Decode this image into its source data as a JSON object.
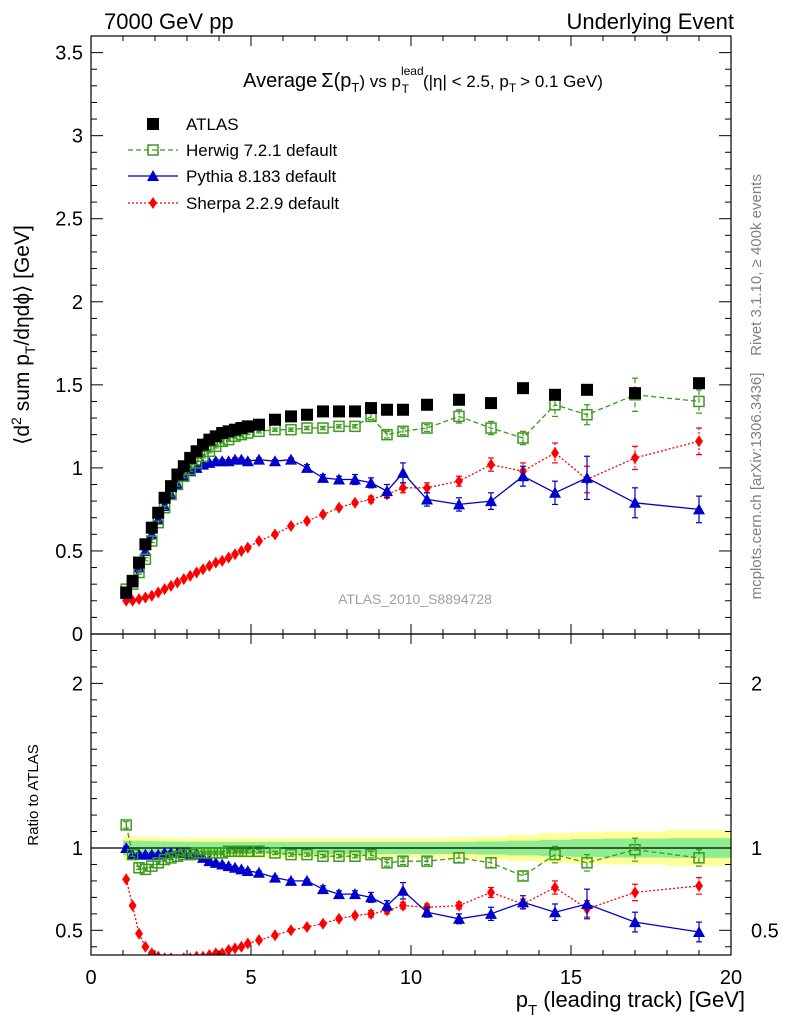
{
  "header": {
    "left": "7000 GeV pp",
    "right": "Underlying Event"
  },
  "side": {
    "rivet": "Rivet 3.1.10, ≥ 400k events",
    "mcplots": "mcplots.cern.ch [arXiv:1306.3436]"
  },
  "colors": {
    "atlas": "#000000",
    "herwig": "#3a9a1c",
    "pythia": "#0000cc",
    "sherpa": "#ff0000",
    "band_inner": "#90ee90",
    "band_outer": "#ffff99",
    "analysis": "#a0a0a0"
  },
  "chart_data": [
    {
      "panel": "main",
      "type": "line",
      "title": "Average Σ(pT) vs pT lead (|η| < 2.5, pT > 0.1 GeV)",
      "title_parts": {
        "average": "Average",
        "sigma": "Σ(p",
        "t1": "T",
        "close": ") vs p",
        "lead": "lead",
        "t2": "T",
        "eta": "(|η| < 2.5, p",
        "t3": "T",
        "cut": "> 0.1 GeV)"
      },
      "ylabel": "⟨d² sum pT/dηdϕ⟩ [GeV]",
      "ylabel_parts": {
        "a": "⟨d",
        "sq": "2",
        "b": " sum p",
        "t": "T",
        "c": "/dηdϕ⟩ [GeV]"
      },
      "analysis": "ATLAS_2010_S8894728",
      "xlim": [
        0,
        20
      ],
      "ylim": [
        0,
        3.6
      ],
      "yticks": [
        0,
        0.5,
        1,
        1.5,
        2,
        2.5,
        3,
        3.5
      ],
      "ytick_labels": [
        "0",
        "0.5",
        "1",
        "1.5",
        "2",
        "2.5",
        "3",
        "3.5"
      ],
      "legend_position": "top-left",
      "series": [
        {
          "name": "ATLAS",
          "key": "atlas",
          "marker": "square-filled",
          "line": "none",
          "x": [
            1.1,
            1.3,
            1.5,
            1.7,
            1.9,
            2.1,
            2.3,
            2.5,
            2.7,
            2.9,
            3.1,
            3.3,
            3.5,
            3.7,
            3.9,
            4.1,
            4.3,
            4.5,
            4.7,
            4.9,
            5.25,
            5.75,
            6.25,
            6.75,
            7.25,
            7.75,
            8.25,
            8.75,
            9.25,
            9.75,
            10.5,
            11.5,
            12.5,
            13.5,
            14.5,
            15.5,
            17.0,
            19.0
          ],
          "y": [
            0.25,
            0.32,
            0.43,
            0.54,
            0.64,
            0.73,
            0.82,
            0.89,
            0.96,
            1.01,
            1.06,
            1.1,
            1.14,
            1.17,
            1.19,
            1.21,
            1.22,
            1.23,
            1.24,
            1.25,
            1.26,
            1.29,
            1.31,
            1.32,
            1.34,
            1.34,
            1.34,
            1.36,
            1.35,
            1.35,
            1.38,
            1.41,
            1.39,
            1.48,
            1.44,
            1.47,
            1.45,
            1.51
          ],
          "yerr": [
            0.01,
            0.01,
            0.01,
            0.01,
            0.01,
            0.01,
            0.01,
            0.01,
            0.01,
            0.01,
            0.01,
            0.01,
            0.01,
            0.01,
            0.01,
            0.01,
            0.01,
            0.01,
            0.01,
            0.01,
            0.01,
            0.01,
            0.01,
            0.01,
            0.01,
            0.01,
            0.01,
            0.01,
            0.01,
            0.01,
            0.01,
            0.01,
            0.01,
            0.01,
            0.02,
            0.02,
            0.02,
            0.03
          ]
        },
        {
          "name": "Herwig 7.2.1 default",
          "key": "herwig",
          "marker": "square-open",
          "line": "dashed",
          "x": [
            1.1,
            1.3,
            1.5,
            1.7,
            1.9,
            2.1,
            2.3,
            2.5,
            2.7,
            2.9,
            3.1,
            3.3,
            3.5,
            3.7,
            3.9,
            4.1,
            4.3,
            4.5,
            4.7,
            4.9,
            5.25,
            5.75,
            6.25,
            6.75,
            7.25,
            7.75,
            8.25,
            8.75,
            9.25,
            9.75,
            10.5,
            11.5,
            12.5,
            13.5,
            14.5,
            15.5,
            17.0,
            19.0
          ],
          "y": [
            0.27,
            0.3,
            0.37,
            0.45,
            0.56,
            0.67,
            0.76,
            0.84,
            0.9,
            0.95,
            0.99,
            1.03,
            1.07,
            1.1,
            1.13,
            1.16,
            1.17,
            1.19,
            1.2,
            1.21,
            1.22,
            1.23,
            1.23,
            1.24,
            1.24,
            1.25,
            1.25,
            1.31,
            1.2,
            1.22,
            1.24,
            1.31,
            1.24,
            1.18,
            1.38,
            1.32,
            1.44,
            1.4
          ],
          "yerr": [
            0.01,
            0.01,
            0.01,
            0.01,
            0.01,
            0.01,
            0.01,
            0.01,
            0.01,
            0.01,
            0.01,
            0.01,
            0.01,
            0.01,
            0.01,
            0.01,
            0.01,
            0.01,
            0.01,
            0.01,
            0.01,
            0.01,
            0.01,
            0.01,
            0.01,
            0.01,
            0.01,
            0.02,
            0.02,
            0.02,
            0.02,
            0.04,
            0.04,
            0.04,
            0.07,
            0.06,
            0.1,
            0.07
          ]
        },
        {
          "name": "Pythia 8.183 default",
          "key": "pythia",
          "marker": "triangle-filled",
          "line": "solid",
          "x": [
            1.1,
            1.3,
            1.5,
            1.7,
            1.9,
            2.1,
            2.3,
            2.5,
            2.7,
            2.9,
            3.1,
            3.3,
            3.5,
            3.7,
            3.9,
            4.1,
            4.3,
            4.5,
            4.7,
            4.9,
            5.25,
            5.75,
            6.25,
            6.75,
            7.25,
            7.75,
            8.25,
            8.75,
            9.25,
            9.75,
            10.5,
            11.5,
            12.5,
            13.5,
            14.5,
            15.5,
            17.0,
            19.0
          ],
          "y": [
            0.24,
            0.31,
            0.4,
            0.5,
            0.6,
            0.69,
            0.77,
            0.84,
            0.9,
            0.95,
            0.98,
            1.0,
            1.02,
            1.03,
            1.04,
            1.04,
            1.04,
            1.05,
            1.05,
            1.04,
            1.05,
            1.04,
            1.05,
            1.0,
            0.94,
            0.93,
            0.93,
            0.91,
            0.86,
            0.97,
            0.81,
            0.78,
            0.8,
            0.95,
            0.85,
            0.94,
            0.79,
            0.75
          ],
          "yerr": [
            0.01,
            0.01,
            0.01,
            0.01,
            0.01,
            0.01,
            0.01,
            0.01,
            0.01,
            0.01,
            0.01,
            0.01,
            0.01,
            0.01,
            0.01,
            0.01,
            0.01,
            0.01,
            0.01,
            0.01,
            0.01,
            0.01,
            0.01,
            0.02,
            0.02,
            0.02,
            0.03,
            0.03,
            0.04,
            0.06,
            0.04,
            0.04,
            0.05,
            0.06,
            0.07,
            0.13,
            0.09,
            0.08
          ]
        },
        {
          "name": "Sherpa 2.2.9 default",
          "key": "sherpa",
          "marker": "diamond-filled",
          "line": "dotted",
          "x": [
            1.1,
            1.3,
            1.5,
            1.7,
            1.9,
            2.1,
            2.3,
            2.5,
            2.7,
            2.9,
            3.1,
            3.3,
            3.5,
            3.7,
            3.9,
            4.1,
            4.3,
            4.5,
            4.7,
            4.9,
            5.25,
            5.75,
            6.25,
            6.75,
            7.25,
            7.75,
            8.25,
            8.75,
            9.25,
            9.75,
            10.5,
            11.5,
            12.5,
            13.5,
            14.5,
            15.5,
            17.0,
            19.0
          ],
          "y": [
            0.2,
            0.2,
            0.21,
            0.22,
            0.23,
            0.25,
            0.27,
            0.29,
            0.31,
            0.33,
            0.35,
            0.37,
            0.39,
            0.41,
            0.43,
            0.44,
            0.46,
            0.48,
            0.5,
            0.52,
            0.56,
            0.6,
            0.65,
            0.68,
            0.72,
            0.76,
            0.79,
            0.81,
            0.84,
            0.88,
            0.88,
            0.92,
            1.02,
            0.98,
            1.09,
            0.93,
            1.06,
            1.16
          ],
          "yerr": [
            0.005,
            0.005,
            0.005,
            0.005,
            0.005,
            0.005,
            0.005,
            0.005,
            0.005,
            0.005,
            0.005,
            0.005,
            0.005,
            0.005,
            0.005,
            0.005,
            0.005,
            0.005,
            0.005,
            0.005,
            0.01,
            0.01,
            0.01,
            0.01,
            0.01,
            0.01,
            0.01,
            0.02,
            0.02,
            0.03,
            0.03,
            0.03,
            0.04,
            0.05,
            0.06,
            0.08,
            0.07,
            0.08
          ]
        }
      ]
    },
    {
      "panel": "ratio",
      "type": "line",
      "ylabel": "Ratio to ATLAS",
      "xlabel": "pT (leading track) [GeV]",
      "xlabel_parts": {
        "p": "p",
        "t": "T",
        "rest": " (leading track) [GeV]"
      },
      "xlim": [
        0,
        20
      ],
      "ylim": [
        0.35,
        2.3
      ],
      "xticks": [
        0,
        5,
        10,
        15,
        20
      ],
      "xtick_labels": [
        "0",
        "5",
        "10",
        "15",
        "20"
      ],
      "yticks": [
        0.5,
        1,
        2
      ],
      "ytick_labels": [
        "0.5",
        "1",
        "2"
      ],
      "band_edges": [
        1.0,
        1.2,
        1.4,
        1.6,
        1.8,
        2.0,
        2.2,
        2.4,
        2.6,
        2.8,
        3.0,
        3.2,
        3.4,
        3.6,
        3.8,
        4.0,
        4.2,
        4.4,
        4.6,
        4.8,
        5.0,
        5.5,
        6.0,
        6.5,
        7.0,
        7.5,
        8.0,
        8.5,
        9.0,
        9.5,
        10.0,
        11.0,
        12.0,
        13.0,
        14.0,
        15.0,
        16.0,
        18.0,
        20.0
      ],
      "band_inner": [
        0.045,
        0.045,
        0.045,
        0.043,
        0.042,
        0.041,
        0.04,
        0.039,
        0.039,
        0.038,
        0.038,
        0.038,
        0.037,
        0.037,
        0.037,
        0.037,
        0.037,
        0.037,
        0.037,
        0.037,
        0.037,
        0.037,
        0.037,
        0.037,
        0.037,
        0.037,
        0.037,
        0.037,
        0.037,
        0.037,
        0.037,
        0.037,
        0.04,
        0.045,
        0.05,
        0.055,
        0.058,
        0.06
      ],
      "band_outer": [
        0.075,
        0.072,
        0.07,
        0.068,
        0.066,
        0.064,
        0.063,
        0.062,
        0.061,
        0.06,
        0.06,
        0.06,
        0.06,
        0.06,
        0.06,
        0.06,
        0.06,
        0.06,
        0.06,
        0.06,
        0.06,
        0.06,
        0.06,
        0.06,
        0.06,
        0.06,
        0.06,
        0.06,
        0.06,
        0.06,
        0.06,
        0.065,
        0.07,
        0.08,
        0.09,
        0.095,
        0.1,
        0.11
      ],
      "series": [
        {
          "name": "Herwig 7.2.1 default",
          "key": "herwig",
          "marker": "square-open",
          "line": "dashed",
          "x": [
            1.1,
            1.3,
            1.5,
            1.7,
            1.9,
            2.1,
            2.3,
            2.5,
            2.7,
            2.9,
            3.1,
            3.3,
            3.5,
            3.7,
            3.9,
            4.1,
            4.3,
            4.5,
            4.7,
            4.9,
            5.25,
            5.75,
            6.25,
            6.75,
            7.25,
            7.75,
            8.25,
            8.75,
            9.25,
            9.75,
            10.5,
            11.5,
            12.5,
            13.5,
            14.5,
            15.5,
            17.0,
            19.0
          ],
          "y": [
            1.14,
            0.96,
            0.88,
            0.87,
            0.89,
            0.91,
            0.93,
            0.94,
            0.95,
            0.96,
            0.96,
            0.97,
            0.97,
            0.97,
            0.97,
            0.97,
            0.98,
            0.98,
            0.98,
            0.98,
            0.98,
            0.97,
            0.96,
            0.96,
            0.95,
            0.95,
            0.95,
            0.96,
            0.91,
            0.92,
            0.92,
            0.94,
            0.91,
            0.83,
            0.96,
            0.91,
            0.99,
            0.94
          ],
          "yerr": [
            0.02,
            0.01,
            0.01,
            0.01,
            0.01,
            0.01,
            0.01,
            0.01,
            0.01,
            0.01,
            0.01,
            0.01,
            0.01,
            0.01,
            0.01,
            0.01,
            0.01,
            0.01,
            0.01,
            0.01,
            0.01,
            0.01,
            0.01,
            0.01,
            0.01,
            0.01,
            0.01,
            0.02,
            0.02,
            0.02,
            0.02,
            0.03,
            0.03,
            0.03,
            0.05,
            0.05,
            0.07,
            0.05
          ]
        },
        {
          "name": "Pythia 8.183 default",
          "key": "pythia",
          "marker": "triangle-filled",
          "line": "solid",
          "x": [
            1.1,
            1.3,
            1.5,
            1.7,
            1.9,
            2.1,
            2.3,
            2.5,
            2.7,
            2.9,
            3.1,
            3.3,
            3.5,
            3.7,
            3.9,
            4.1,
            4.3,
            4.5,
            4.7,
            4.9,
            5.25,
            5.75,
            6.25,
            6.75,
            7.25,
            7.75,
            8.25,
            8.75,
            9.25,
            9.75,
            10.5,
            11.5,
            12.5,
            13.5,
            14.5,
            15.5,
            17.0,
            19.0
          ],
          "y": [
            1.0,
            0.96,
            0.96,
            0.96,
            0.96,
            0.96,
            0.97,
            0.97,
            0.97,
            0.97,
            0.96,
            0.96,
            0.94,
            0.92,
            0.91,
            0.9,
            0.89,
            0.88,
            0.87,
            0.86,
            0.85,
            0.82,
            0.8,
            0.8,
            0.75,
            0.72,
            0.72,
            0.7,
            0.65,
            0.74,
            0.61,
            0.57,
            0.6,
            0.67,
            0.61,
            0.66,
            0.55,
            0.49
          ],
          "yerr": [
            0.01,
            0.01,
            0.01,
            0.01,
            0.01,
            0.01,
            0.01,
            0.01,
            0.01,
            0.01,
            0.01,
            0.01,
            0.01,
            0.01,
            0.01,
            0.01,
            0.01,
            0.01,
            0.01,
            0.01,
            0.01,
            0.01,
            0.01,
            0.01,
            0.02,
            0.02,
            0.02,
            0.03,
            0.03,
            0.05,
            0.03,
            0.03,
            0.04,
            0.04,
            0.05,
            0.09,
            0.06,
            0.06
          ]
        },
        {
          "name": "Sherpa 2.2.9 default",
          "key": "sherpa",
          "marker": "diamond-filled",
          "line": "dotted",
          "x": [
            1.1,
            1.3,
            1.5,
            1.7,
            1.9,
            2.1,
            2.3,
            2.5,
            2.7,
            2.9,
            3.1,
            3.3,
            3.5,
            3.7,
            3.9,
            4.1,
            4.3,
            4.5,
            4.7,
            4.9,
            5.25,
            5.75,
            6.25,
            6.75,
            7.25,
            7.75,
            8.25,
            8.75,
            9.25,
            9.75,
            10.5,
            11.5,
            12.5,
            13.5,
            14.5,
            15.5,
            17.0,
            19.0
          ],
          "y": [
            0.81,
            0.65,
            0.48,
            0.4,
            0.36,
            0.34,
            0.33,
            0.33,
            0.32,
            0.33,
            0.33,
            0.34,
            0.34,
            0.35,
            0.36,
            0.36,
            0.38,
            0.39,
            0.4,
            0.42,
            0.44,
            0.47,
            0.5,
            0.52,
            0.54,
            0.57,
            0.59,
            0.6,
            0.62,
            0.65,
            0.64,
            0.65,
            0.73,
            0.66,
            0.76,
            0.63,
            0.73,
            0.77
          ],
          "yerr": [
            0.005,
            0.005,
            0.005,
            0.005,
            0.005,
            0.005,
            0.005,
            0.005,
            0.005,
            0.005,
            0.005,
            0.005,
            0.005,
            0.005,
            0.005,
            0.005,
            0.005,
            0.005,
            0.005,
            0.005,
            0.01,
            0.01,
            0.01,
            0.01,
            0.01,
            0.01,
            0.01,
            0.02,
            0.02,
            0.02,
            0.02,
            0.02,
            0.03,
            0.03,
            0.04,
            0.05,
            0.05,
            0.05
          ]
        }
      ]
    }
  ]
}
